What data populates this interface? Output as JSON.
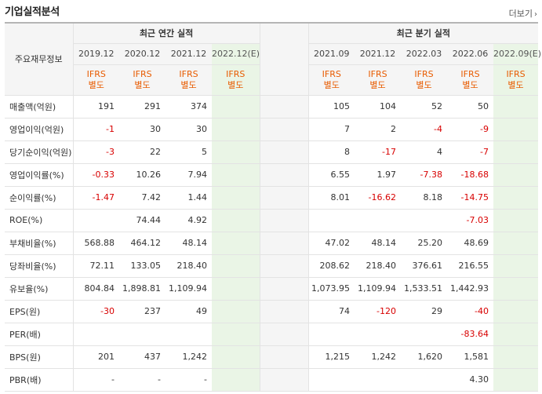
{
  "section_title": "기업실적분석",
  "more_label": "더보기",
  "more_icon": "chevron-right-icon",
  "header": {
    "label": "주요재무정보",
    "annual_title": "최근 연간 실적",
    "quarter_title": "최근 분기 실적",
    "annual_periods": [
      "2019.12",
      "2020.12",
      "2021.12",
      "2022.12(E)"
    ],
    "quarter_periods": [
      "2021.09",
      "2021.12",
      "2022.03",
      "2022.06",
      "2022.09(E)"
    ],
    "ifrs": "IFRS",
    "basis": "별도"
  },
  "rows": [
    {
      "label": "매출액(억원)",
      "annual": [
        "191",
        "291",
        "374",
        ""
      ],
      "quarter": [
        "105",
        "104",
        "52",
        "50",
        ""
      ]
    },
    {
      "label": "영업이익(억원)",
      "annual": [
        "-1",
        "30",
        "30",
        ""
      ],
      "quarter": [
        "7",
        "2",
        "-4",
        "-9",
        ""
      ]
    },
    {
      "label": "당기순이익(억원)",
      "annual": [
        "-3",
        "22",
        "5",
        ""
      ],
      "quarter": [
        "8",
        "-17",
        "4",
        "-7",
        ""
      ]
    },
    {
      "label": "영업이익률(%)",
      "annual": [
        "-0.33",
        "10.26",
        "7.94",
        ""
      ],
      "quarter": [
        "6.55",
        "1.97",
        "-7.38",
        "-18.68",
        ""
      ]
    },
    {
      "label": "순이익률(%)",
      "annual": [
        "-1.47",
        "7.42",
        "1.44",
        ""
      ],
      "quarter": [
        "8.01",
        "-16.62",
        "8.18",
        "-14.75",
        ""
      ]
    },
    {
      "label": "ROE(%)",
      "annual": [
        "",
        "74.44",
        "4.92",
        ""
      ],
      "quarter": [
        "",
        "",
        "",
        "-7.03",
        ""
      ]
    },
    {
      "label": "부채비율(%)",
      "annual": [
        "568.88",
        "464.12",
        "48.14",
        ""
      ],
      "quarter": [
        "47.02",
        "48.14",
        "25.20",
        "48.69",
        ""
      ]
    },
    {
      "label": "당좌비율(%)",
      "annual": [
        "72.11",
        "133.05",
        "218.40",
        ""
      ],
      "quarter": [
        "208.62",
        "218.40",
        "376.61",
        "216.55",
        ""
      ]
    },
    {
      "label": "유보율(%)",
      "annual": [
        "804.84",
        "1,898.81",
        "1,109.94",
        ""
      ],
      "quarter": [
        "1,073.95",
        "1,109.94",
        "1,533.51",
        "1,442.93",
        ""
      ]
    },
    {
      "label": "EPS(원)",
      "annual": [
        "-30",
        "237",
        "49",
        ""
      ],
      "quarter": [
        "74",
        "-120",
        "29",
        "-40",
        ""
      ]
    },
    {
      "label": "PER(배)",
      "annual": [
        "",
        "",
        "",
        ""
      ],
      "quarter": [
        "",
        "",
        "",
        "-83.64",
        ""
      ]
    },
    {
      "label": "BPS(원)",
      "annual": [
        "201",
        "437",
        "1,242",
        ""
      ],
      "quarter": [
        "1,215",
        "1,242",
        "1,620",
        "1,581",
        ""
      ]
    },
    {
      "label": "PBR(배)",
      "annual": [
        "-",
        "-",
        "-",
        ""
      ],
      "quarter": [
        "",
        "",
        "",
        "4.30",
        ""
      ]
    }
  ],
  "colors": {
    "negative": "#d80000",
    "ifrs": "#e85b00",
    "estimate_bg": "#eaf5e6",
    "header_bg": "#f5f5f5"
  }
}
